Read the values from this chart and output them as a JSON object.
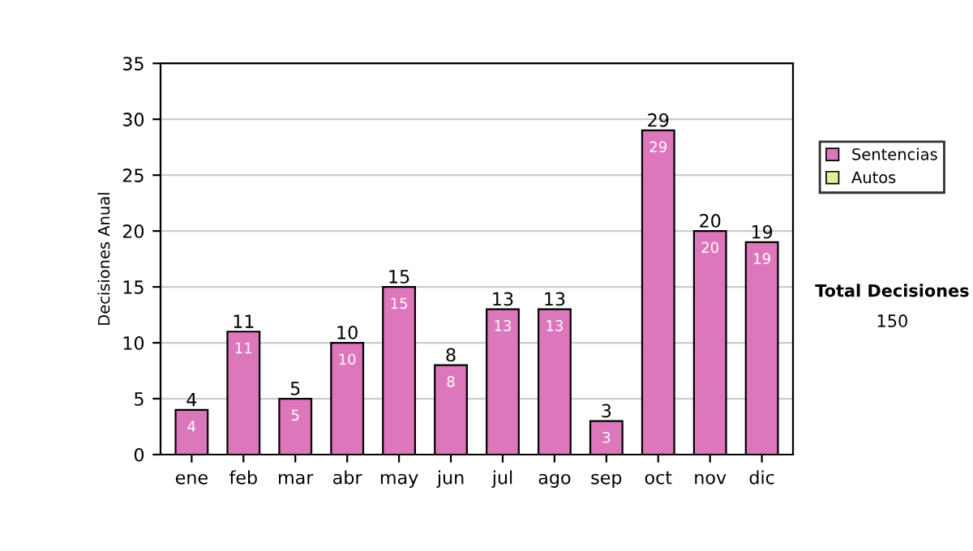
{
  "chart_data": {
    "type": "bar",
    "ylabel": "Decisiones Anual",
    "categories": [
      "ene",
      "feb",
      "mar",
      "abr",
      "may",
      "jun",
      "jul",
      "ago",
      "sep",
      "oct",
      "nov",
      "dic"
    ],
    "series": [
      {
        "name": "Sentencias",
        "color": "#dd77bb",
        "values": [
          4,
          11,
          5,
          10,
          15,
          8,
          13,
          13,
          3,
          29,
          20,
          19
        ],
        "value_labels": [
          "4",
          "11",
          "5",
          "10",
          "15",
          "8",
          "13",
          "13",
          "3",
          "29",
          "20",
          "19"
        ]
      },
      {
        "name": "Autos",
        "color": "#e6ee99",
        "values": [
          null,
          null,
          null,
          null,
          null,
          null,
          null,
          null,
          null,
          null,
          null,
          null
        ]
      }
    ],
    "stacked": true,
    "totals": [
      "4",
      "11",
      "5",
      "10",
      "15",
      "8",
      "13",
      "13",
      "3",
      "29",
      "20",
      "19"
    ],
    "ylim": [
      0,
      35
    ],
    "yticks": [
      0,
      5,
      10,
      15,
      20,
      25,
      30,
      35
    ],
    "grid": "y",
    "legend": "right",
    "annotations": [
      "Total Decisiones",
      "150"
    ]
  }
}
